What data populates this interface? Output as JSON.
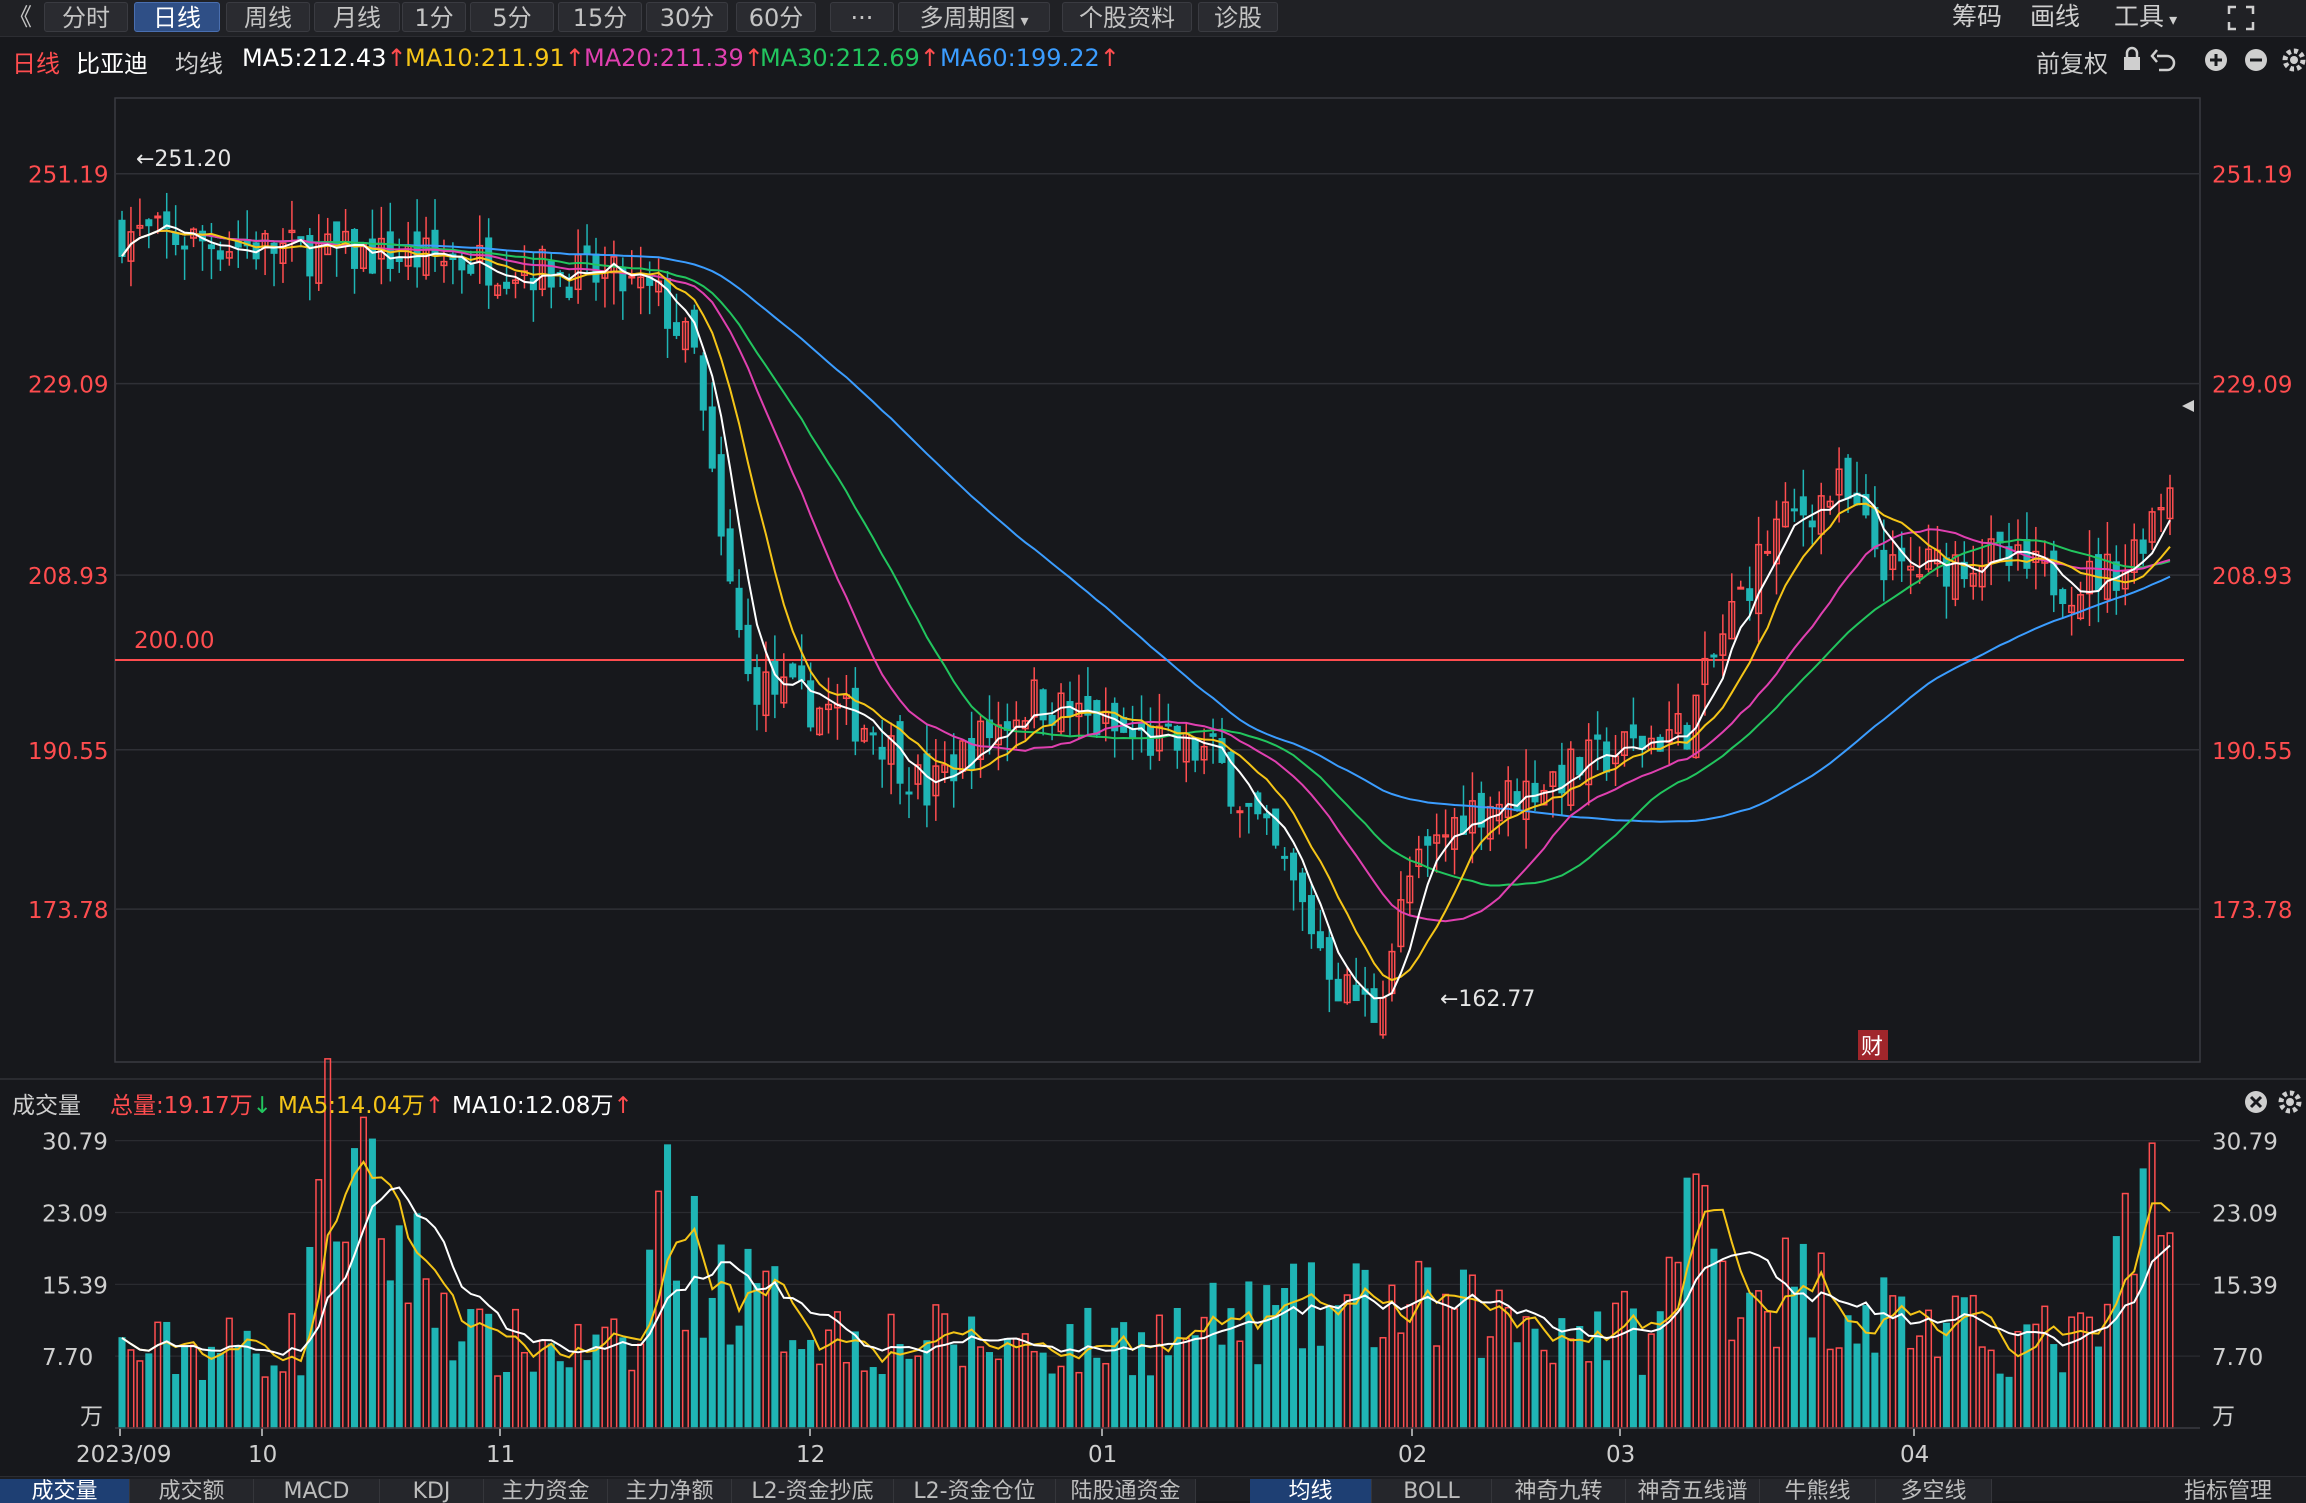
{
  "toolbar": {
    "back": "《",
    "tabs": [
      "分时",
      "日线",
      "周线",
      "月线",
      "1分",
      "5分",
      "15分",
      "30分",
      "60分",
      "···",
      "多周期图",
      "个股资料",
      "诊股"
    ],
    "active": 1,
    "right": [
      "筹码",
      "画线",
      "工具"
    ]
  },
  "legend": {
    "period": "日线",
    "stock": "比亚迪",
    "label": "均线",
    "ma": [
      {
        "text": "MA5:212.43",
        "color": "#ffffff"
      },
      {
        "text": "MA10:211.91",
        "color": "#f5c518"
      },
      {
        "text": "MA20:211.39",
        "color": "#e040b0"
      },
      {
        "text": "MA30:212.69",
        "color": "#22c55e"
      },
      {
        "text": "MA60:199.22",
        "color": "#3b9dff"
      }
    ],
    "adjust": "前复权"
  },
  "price_axis": {
    "ticks": [
      "251.19",
      "229.09",
      "208.93",
      "190.55",
      "173.78"
    ],
    "values": [
      251.19,
      229.09,
      208.93,
      190.55,
      173.78
    ]
  },
  "annotations": {
    "high": "←251.20",
    "low": "←162.77",
    "line": "200.00",
    "line_value": 200.0,
    "badge": "财"
  },
  "volume_legend": {
    "title": "成交量",
    "total": "总量:19.17万",
    "ma5": "MA5:14.04万",
    "ma10": "MA10:12.08万"
  },
  "volume_axis": {
    "ticks": [
      "30.79",
      "23.09",
      "15.39",
      "7.70"
    ],
    "values": [
      30.79,
      23.09,
      15.39,
      7.7
    ],
    "unit": "万"
  },
  "date_axis": [
    "2023/09",
    "10",
    "11",
    "12",
    "01",
    "02",
    "03",
    "04"
  ],
  "bottom_tabs_left": [
    "成交量",
    "成交额",
    "MACD",
    "KDJ",
    "主力资金",
    "主力净额",
    "L2-资金抄底",
    "L2-资金仓位",
    "陆股通资金"
  ],
  "bottom_tabs_right": [
    "均线",
    "BOLL",
    "神奇九转",
    "神奇五线谱",
    "牛熊线",
    "多空线"
  ],
  "bottom_right_label": "指标管理",
  "colors": {
    "up": "#ff4d4f",
    "down": "#1fb5b5",
    "ma5": "#ffffff",
    "ma10": "#f5c518",
    "ma20": "#e040b0",
    "ma30": "#22c55e",
    "ma60": "#3b9dff"
  },
  "chart_data": {
    "type": "candlestick",
    "x_dates": [
      "2023/09",
      "10",
      "11",
      "12",
      "01",
      "02",
      "03",
      "04"
    ],
    "price_range": [
      160,
      256
    ],
    "anchors": [
      [
        0,
        245
      ],
      [
        20,
        243
      ],
      [
        40,
        242
      ],
      [
        55,
        240
      ],
      [
        60,
        238
      ],
      [
        64,
        232
      ],
      [
        67,
        212
      ],
      [
        70,
        198
      ],
      [
        75,
        196
      ],
      [
        84,
        193
      ],
      [
        90,
        186
      ],
      [
        95,
        191
      ],
      [
        102,
        196
      ],
      [
        112,
        192
      ],
      [
        122,
        190
      ],
      [
        130,
        178
      ],
      [
        136,
        166
      ],
      [
        140,
        163
      ],
      [
        144,
        177
      ],
      [
        150,
        184
      ],
      [
        156,
        186
      ],
      [
        166,
        190
      ],
      [
        175,
        193
      ],
      [
        180,
        205
      ],
      [
        185,
        214
      ],
      [
        192,
        218
      ],
      [
        198,
        209
      ],
      [
        208,
        211
      ],
      [
        218,
        208
      ],
      [
        224,
        210
      ],
      [
        229,
        219
      ]
    ],
    "volume_range": [
      0,
      33
    ],
    "volume_anchors": [
      [
        0,
        8
      ],
      [
        20,
        9
      ],
      [
        22,
        30
      ],
      [
        40,
        9
      ],
      [
        58,
        8
      ],
      [
        60,
        28
      ],
      [
        62,
        19
      ],
      [
        68,
        15
      ],
      [
        72,
        13
      ],
      [
        80,
        10
      ],
      [
        95,
        9
      ],
      [
        110,
        9
      ],
      [
        130,
        12
      ],
      [
        140,
        13
      ],
      [
        150,
        12
      ],
      [
        160,
        11
      ],
      [
        172,
        10
      ],
      [
        175,
        25
      ],
      [
        180,
        16
      ],
      [
        192,
        14
      ],
      [
        205,
        10
      ],
      [
        220,
        9
      ],
      [
        227,
        24
      ],
      [
        229,
        17
      ]
    ]
  }
}
